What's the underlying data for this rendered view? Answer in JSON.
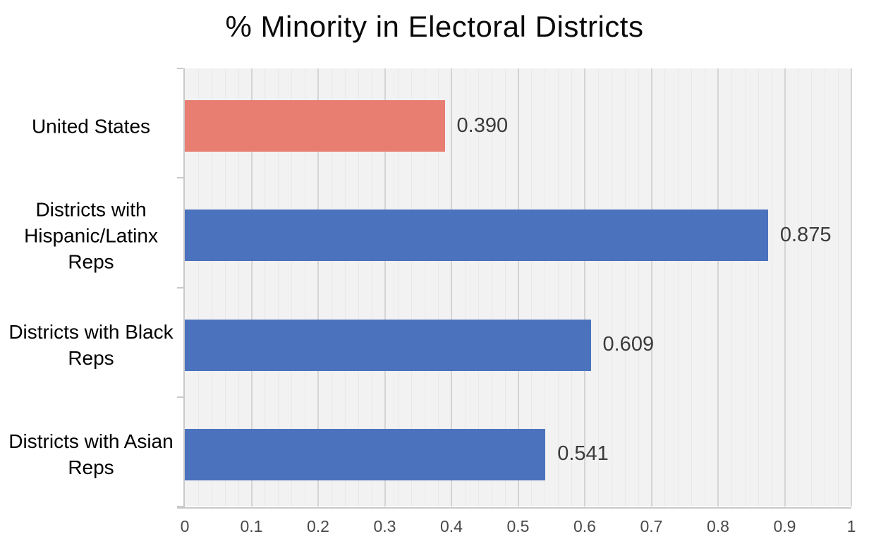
{
  "chart_data": {
    "type": "bar",
    "orientation": "horizontal",
    "title": "% Minority in Electoral Districts",
    "categories": [
      "United States",
      "Districts with Hispanic/Latinx Reps",
      "Districts with Black Reps",
      "Districts with Asian Reps"
    ],
    "values": [
      0.39,
      0.875,
      0.609,
      0.541
    ],
    "value_labels": [
      "0.390",
      "0.875",
      "0.609",
      "0.541"
    ],
    "bar_colors": [
      "#e87d71",
      "#4b72bd",
      "#4b72bd",
      "#4b72bd"
    ],
    "xlabel": "",
    "ylabel": "",
    "xlim": [
      0,
      1
    ],
    "x_ticks": [
      "0",
      "0.1",
      "0.2",
      "0.3",
      "0.4",
      "0.5",
      "0.6",
      "0.7",
      "0.8",
      "0.9",
      "1"
    ],
    "x_tick_values": [
      0,
      0.1,
      0.2,
      0.3,
      0.4,
      0.5,
      0.6,
      0.7,
      0.8,
      0.9,
      1
    ],
    "major_grid_step": 0.1,
    "minor_grid_step": 0.02,
    "grid": "vertical, major and minor, on",
    "legend_position": "none",
    "style": {
      "plot_background": "#f2f2f2",
      "major_gridline_color": "#d4d4d4",
      "minor_gridline_color": "#e9e9e9",
      "axis_line_color": "#c9c9c9",
      "title_color": "#0a0a0a",
      "category_label_color": "#000000",
      "value_label_color": "#3b3b3b",
      "tick_label_color": "#4a4a4a"
    }
  }
}
